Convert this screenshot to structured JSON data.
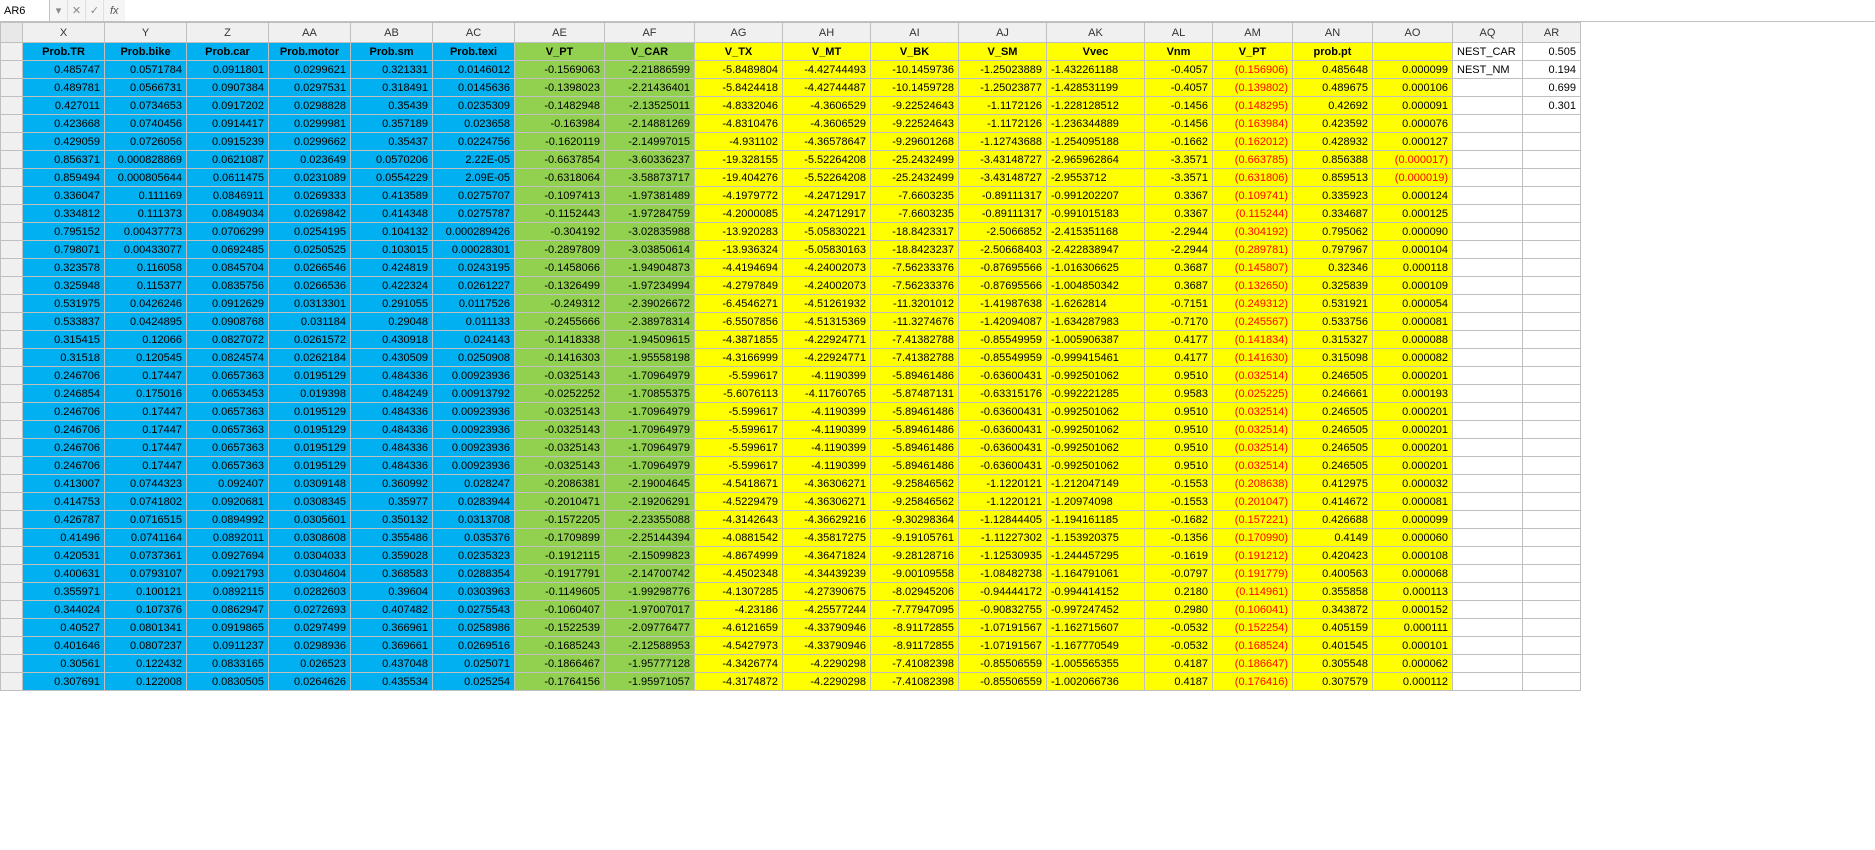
{
  "formula_bar": {
    "name_box": "AR6",
    "dropdown_glyph": "▾",
    "cancel_glyph": "✕",
    "accept_glyph": "✓",
    "fx_label": "fx",
    "formula_value": ""
  },
  "colors": {
    "blue": "#00b0f0",
    "green": "#92d050",
    "yellow": "#ffff00",
    "neg": "#ff0000",
    "white": "#ffffff",
    "gridline": "#bfbfbf",
    "header_bg": "#f0f0f0"
  },
  "column_letters": [
    "X",
    "Y",
    "Z",
    "AA",
    "AB",
    "AC",
    "AE",
    "AF",
    "AG",
    "AH",
    "AI",
    "AJ",
    "AK",
    "AL",
    "AM",
    "AN",
    "AO",
    "AQ",
    "AR"
  ],
  "field_headers": [
    "Prob.TR",
    "Prob.bike",
    "Prob.car",
    "Prob.motor",
    "Prob.sm",
    "Prob.texi",
    "V_PT",
    "V_CAR",
    "V_TX",
    "V_MT",
    "V_BK",
    "V_SM",
    "Vvec",
    "Vnm",
    "V_PT",
    "prob.pt",
    ""
  ],
  "side": {
    "nest_car_label": "NEST_CAR",
    "nest_car_val": "0.505",
    "nest_nm_label": "NEST_NM",
    "nest_nm_val": "0.194",
    "sum1": "0.699",
    "sum2": "0.301"
  },
  "row_start": 3,
  "rows": [
    [
      "0.485747",
      "0.0571784",
      "0.0911801",
      "0.0299621",
      "0.321331",
      "0.0146012",
      "-0.1569063",
      "-2.21886599",
      "-5.8489804",
      "-4.42744493",
      "-10.1459736",
      "-1.25023889",
      "-1.432261188",
      "-0.4057",
      "(0.156906)",
      "0.485648",
      "0.000099"
    ],
    [
      "0.489781",
      "0.0566731",
      "0.0907384",
      "0.0297531",
      "0.318491",
      "0.0145636",
      "-0.1398023",
      "-2.21436401",
      "-5.8424418",
      "-4.42744487",
      "-10.1459728",
      "-1.25023877",
      "-1.428531199",
      "-0.4057",
      "(0.139802)",
      "0.489675",
      "0.000106"
    ],
    [
      "0.427011",
      "0.0734653",
      "0.0917202",
      "0.0298828",
      "0.35439",
      "0.0235309",
      "-0.1482948",
      "-2.13525011",
      "-4.8332046",
      "-4.3606529",
      "-9.22524643",
      "-1.1172126",
      "-1.228128512",
      "-0.1456",
      "(0.148295)",
      "0.42692",
      "0.000091"
    ],
    [
      "0.423668",
      "0.0740456",
      "0.0914417",
      "0.0299981",
      "0.357189",
      "0.023658",
      "-0.163984",
      "-2.14881269",
      "-4.8310476",
      "-4.3606529",
      "-9.22524643",
      "-1.1172126",
      "-1.236344889",
      "-0.1456",
      "(0.163984)",
      "0.423592",
      "0.000076"
    ],
    [
      "0.429059",
      "0.0726056",
      "0.0915239",
      "0.0299662",
      "0.35437",
      "0.0224756",
      "-0.1620119",
      "-2.14997015",
      "-4.931102",
      "-4.36578647",
      "-9.29601268",
      "-1.12743688",
      "-1.254095188",
      "-0.1662",
      "(0.162012)",
      "0.428932",
      "0.000127"
    ],
    [
      "0.856371",
      "0.000828869",
      "0.0621087",
      "0.023649",
      "0.0570206",
      "2.22E-05",
      "-0.6637854",
      "-3.60336237",
      "-19.328155",
      "-5.52264208",
      "-25.2432499",
      "-3.43148727",
      "-2.965962864",
      "-3.3571",
      "(0.663785)",
      "0.856388",
      "(0.000017)"
    ],
    [
      "0.859494",
      "0.000805644",
      "0.0611475",
      "0.0231089",
      "0.0554229",
      "2.09E-05",
      "-0.6318064",
      "-3.58873717",
      "-19.404276",
      "-5.52264208",
      "-25.2432499",
      "-3.43148727",
      "-2.9553712",
      "-3.3571",
      "(0.631806)",
      "0.859513",
      "(0.000019)"
    ],
    [
      "0.336047",
      "0.111169",
      "0.0846911",
      "0.0269333",
      "0.413589",
      "0.0275707",
      "-0.1097413",
      "-1.97381489",
      "-4.1979772",
      "-4.24712917",
      "-7.6603235",
      "-0.89111317",
      "-0.991202207",
      "0.3367",
      "(0.109741)",
      "0.335923",
      "0.000124"
    ],
    [
      "0.334812",
      "0.111373",
      "0.0849034",
      "0.0269842",
      "0.414348",
      "0.0275787",
      "-0.1152443",
      "-1.97284759",
      "-4.2000085",
      "-4.24712917",
      "-7.6603235",
      "-0.89111317",
      "-0.991015183",
      "0.3367",
      "(0.115244)",
      "0.334687",
      "0.000125"
    ],
    [
      "0.795152",
      "0.00437773",
      "0.0706299",
      "0.0254195",
      "0.104132",
      "0.000289426",
      "-0.304192",
      "-3.02835988",
      "-13.920283",
      "-5.05830221",
      "-18.8423317",
      "-2.5066852",
      "-2.415351168",
      "-2.2944",
      "(0.304192)",
      "0.795062",
      "0.000090"
    ],
    [
      "0.798071",
      "0.00433077",
      "0.0692485",
      "0.0250525",
      "0.103015",
      "0.00028301",
      "-0.2897809",
      "-3.03850614",
      "-13.936324",
      "-5.05830163",
      "-18.8423237",
      "-2.50668403",
      "-2.422838947",
      "-2.2944",
      "(0.289781)",
      "0.797967",
      "0.000104"
    ],
    [
      "0.323578",
      "0.116058",
      "0.0845704",
      "0.0266546",
      "0.424819",
      "0.0243195",
      "-0.1458066",
      "-1.94904873",
      "-4.4194694",
      "-4.24002073",
      "-7.56233376",
      "-0.87695566",
      "-1.016306625",
      "0.3687",
      "(0.145807)",
      "0.32346",
      "0.000118"
    ],
    [
      "0.325948",
      "0.115377",
      "0.0835756",
      "0.0266536",
      "0.422324",
      "0.0261227",
      "-0.1326499",
      "-1.97234994",
      "-4.2797849",
      "-4.24002073",
      "-7.56233376",
      "-0.87695566",
      "-1.004850342",
      "0.3687",
      "(0.132650)",
      "0.325839",
      "0.000109"
    ],
    [
      "0.531975",
      "0.0426246",
      "0.0912629",
      "0.0313301",
      "0.291055",
      "0.0117526",
      "-0.249312",
      "-2.39026672",
      "-6.4546271",
      "-4.51261932",
      "-11.3201012",
      "-1.41987638",
      "-1.6262814",
      "-0.7151",
      "(0.249312)",
      "0.531921",
      "0.000054"
    ],
    [
      "0.533837",
      "0.0424895",
      "0.0908768",
      "0.031184",
      "0.29048",
      "0.011133",
      "-0.2455666",
      "-2.38978314",
      "-6.5507856",
      "-4.51315369",
      "-11.3274676",
      "-1.42094087",
      "-1.634287983",
      "-0.7170",
      "(0.245567)",
      "0.533756",
      "0.000081"
    ],
    [
      "0.315415",
      "0.12066",
      "0.0827072",
      "0.0261572",
      "0.430918",
      "0.024143",
      "-0.1418338",
      "-1.94509615",
      "-4.3871855",
      "-4.22924771",
      "-7.41382788",
      "-0.85549959",
      "-1.005906387",
      "0.4177",
      "(0.141834)",
      "0.315327",
      "0.000088"
    ],
    [
      "0.31518",
      "0.120545",
      "0.0824574",
      "0.0262184",
      "0.430509",
      "0.0250908",
      "-0.1416303",
      "-1.95558198",
      "-4.3166999",
      "-4.22924771",
      "-7.41382788",
      "-0.85549959",
      "-0.999415461",
      "0.4177",
      "(0.141630)",
      "0.315098",
      "0.000082"
    ],
    [
      "0.246706",
      "0.17447",
      "0.0657363",
      "0.0195129",
      "0.484336",
      "0.00923936",
      "-0.0325143",
      "-1.70964979",
      "-5.599617",
      "-4.1190399",
      "-5.89461486",
      "-0.63600431",
      "-0.992501062",
      "0.9510",
      "(0.032514)",
      "0.246505",
      "0.000201"
    ],
    [
      "0.246854",
      "0.175016",
      "0.0653453",
      "0.019398",
      "0.484249",
      "0.00913792",
      "-0.0252252",
      "-1.70855375",
      "-5.6076113",
      "-4.11760765",
      "-5.87487131",
      "-0.63315176",
      "-0.992221285",
      "0.9583",
      "(0.025225)",
      "0.246661",
      "0.000193"
    ],
    [
      "0.246706",
      "0.17447",
      "0.0657363",
      "0.0195129",
      "0.484336",
      "0.00923936",
      "-0.0325143",
      "-1.70964979",
      "-5.599617",
      "-4.1190399",
      "-5.89461486",
      "-0.63600431",
      "-0.992501062",
      "0.9510",
      "(0.032514)",
      "0.246505",
      "0.000201"
    ],
    [
      "0.246706",
      "0.17447",
      "0.0657363",
      "0.0195129",
      "0.484336",
      "0.00923936",
      "-0.0325143",
      "-1.70964979",
      "-5.599617",
      "-4.1190399",
      "-5.89461486",
      "-0.63600431",
      "-0.992501062",
      "0.9510",
      "(0.032514)",
      "0.246505",
      "0.000201"
    ],
    [
      "0.246706",
      "0.17447",
      "0.0657363",
      "0.0195129",
      "0.484336",
      "0.00923936",
      "-0.0325143",
      "-1.70964979",
      "-5.599617",
      "-4.1190399",
      "-5.89461486",
      "-0.63600431",
      "-0.992501062",
      "0.9510",
      "(0.032514)",
      "0.246505",
      "0.000201"
    ],
    [
      "0.246706",
      "0.17447",
      "0.0657363",
      "0.0195129",
      "0.484336",
      "0.00923936",
      "-0.0325143",
      "-1.70964979",
      "-5.599617",
      "-4.1190399",
      "-5.89461486",
      "-0.63600431",
      "-0.992501062",
      "0.9510",
      "(0.032514)",
      "0.246505",
      "0.000201"
    ],
    [
      "0.413007",
      "0.0744323",
      "0.092407",
      "0.0309148",
      "0.360992",
      "0.028247",
      "-0.2086381",
      "-2.19004645",
      "-4.5418671",
      "-4.36306271",
      "-9.25846562",
      "-1.1220121",
      "-1.212047149",
      "-0.1553",
      "(0.208638)",
      "0.412975",
      "0.000032"
    ],
    [
      "0.414753",
      "0.0741802",
      "0.0920681",
      "0.0308345",
      "0.35977",
      "0.0283944",
      "-0.2010471",
      "-2.19206291",
      "-4.5229479",
      "-4.36306271",
      "-9.25846562",
      "-1.1220121",
      "-1.20974098",
      "-0.1553",
      "(0.201047)",
      "0.414672",
      "0.000081"
    ],
    [
      "0.426787",
      "0.0716515",
      "0.0894992",
      "0.0305601",
      "0.350132",
      "0.0313708",
      "-0.1572205",
      "-2.23355088",
      "-4.3142643",
      "-4.36629216",
      "-9.30298364",
      "-1.12844405",
      "-1.194161185",
      "-0.1682",
      "(0.157221)",
      "0.426688",
      "0.000099"
    ],
    [
      "0.41496",
      "0.0741164",
      "0.0892011",
      "0.0308608",
      "0.355486",
      "0.035376",
      "-0.1709899",
      "-2.25144394",
      "-4.0881542",
      "-4.35817275",
      "-9.19105761",
      "-1.11227302",
      "-1.153920375",
      "-0.1356",
      "(0.170990)",
      "0.4149",
      "0.000060"
    ],
    [
      "0.420531",
      "0.0737361",
      "0.0927694",
      "0.0304033",
      "0.359028",
      "0.0235323",
      "-0.1912115",
      "-2.15099823",
      "-4.8674999",
      "-4.36471824",
      "-9.28128716",
      "-1.12530935",
      "-1.244457295",
      "-0.1619",
      "(0.191212)",
      "0.420423",
      "0.000108"
    ],
    [
      "0.400631",
      "0.0793107",
      "0.0921793",
      "0.0304604",
      "0.368583",
      "0.0288354",
      "-0.1917791",
      "-2.14700742",
      "-4.4502348",
      "-4.34439239",
      "-9.00109558",
      "-1.08482738",
      "-1.164791061",
      "-0.0797",
      "(0.191779)",
      "0.400563",
      "0.000068"
    ],
    [
      "0.355971",
      "0.100121",
      "0.0892115",
      "0.0282603",
      "0.39604",
      "0.0303963",
      "-0.1149605",
      "-1.99298776",
      "-4.1307285",
      "-4.27390675",
      "-8.02945206",
      "-0.94444172",
      "-0.994414152",
      "0.2180",
      "(0.114961)",
      "0.355858",
      "0.000113"
    ],
    [
      "0.344024",
      "0.107376",
      "0.0862947",
      "0.0272693",
      "0.407482",
      "0.0275543",
      "-0.1060407",
      "-1.97007017",
      "-4.23186",
      "-4.25577244",
      "-7.77947095",
      "-0.90832755",
      "-0.997247452",
      "0.2980",
      "(0.106041)",
      "0.343872",
      "0.000152"
    ],
    [
      "0.40527",
      "0.0801341",
      "0.0919865",
      "0.0297499",
      "0.366961",
      "0.0258986",
      "-0.1522539",
      "-2.09776477",
      "-4.6121659",
      "-4.33790946",
      "-8.91172855",
      "-1.07191567",
      "-1.162715607",
      "-0.0532",
      "(0.152254)",
      "0.405159",
      "0.000111"
    ],
    [
      "0.401646",
      "0.0807237",
      "0.0911237",
      "0.0298936",
      "0.369661",
      "0.0269516",
      "-0.1685243",
      "-2.12588953",
      "-4.5427973",
      "-4.33790946",
      "-8.91172855",
      "-1.07191567",
      "-1.167770549",
      "-0.0532",
      "(0.168524)",
      "0.401545",
      "0.000101"
    ],
    [
      "0.30561",
      "0.122432",
      "0.0833165",
      "0.026523",
      "0.437048",
      "0.025071",
      "-0.1866467",
      "-1.95777128",
      "-4.3426774",
      "-4.2290298",
      "-7.41082398",
      "-0.85506559",
      "-1.005565355",
      "0.4187",
      "(0.186647)",
      "0.305548",
      "0.000062"
    ],
    [
      "0.307691",
      "0.122008",
      "0.0830505",
      "0.0264626",
      "0.435534",
      "0.025254",
      "-0.1764156",
      "-1.95971057",
      "-4.3174872",
      "-4.2290298",
      "-7.41082398",
      "-0.85506559",
      "-1.002066736",
      "0.4187",
      "(0.176416)",
      "0.307579",
      "0.000112"
    ]
  ]
}
